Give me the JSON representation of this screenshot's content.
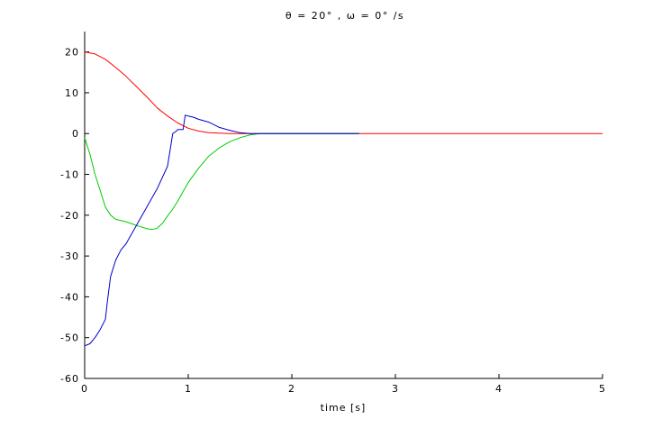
{
  "chart_data": {
    "type": "line",
    "title": "θ = 20°  , ω = 0° /s",
    "xlabel": "time [s]",
    "ylabel": "",
    "xlim": [
      0,
      5
    ],
    "ylim": [
      -60,
      25
    ],
    "x_ticks": [
      "0",
      "1",
      "2",
      "3",
      "4",
      "5"
    ],
    "y_ticks": [
      "20",
      "10",
      "0",
      "-10",
      "-20",
      "-30",
      "-40",
      "-50",
      "-60"
    ],
    "x_tick_values": [
      0,
      1,
      2,
      3,
      4,
      5
    ],
    "y_tick_values": [
      20,
      10,
      0,
      -10,
      -20,
      -30,
      -40,
      -50,
      -60
    ],
    "grid": false,
    "legend": "none",
    "series": [
      {
        "color": "#ff0000",
        "x": [
          0,
          0.1,
          0.2,
          0.3,
          0.4,
          0.5,
          0.6,
          0.7,
          0.8,
          0.9,
          1.0,
          1.1,
          1.2,
          1.3,
          1.4,
          1.5,
          1.6,
          1.8,
          2.0,
          3.0,
          4.0,
          5.0
        ],
        "y": [
          20,
          19.5,
          18.2,
          16.2,
          14.0,
          11.5,
          9.0,
          6.3,
          4.3,
          2.6,
          1.3,
          0.6,
          0.2,
          0.1,
          0,
          0,
          0,
          0,
          0,
          0,
          0,
          0
        ]
      },
      {
        "color": "#00cc00",
        "x": [
          0,
          0.05,
          0.1,
          0.15,
          0.2,
          0.25,
          0.3,
          0.35,
          0.4,
          0.5,
          0.6,
          0.65,
          0.7,
          0.75,
          0.8,
          0.85,
          0.9,
          0.95,
          1.0,
          1.1,
          1.2,
          1.3,
          1.4,
          1.5,
          1.6,
          1.7,
          2.0,
          2.65
        ],
        "y": [
          -1,
          -5,
          -10,
          -14,
          -18,
          -20,
          -21,
          -21.3,
          -21.6,
          -22.5,
          -23.3,
          -23.5,
          -23.2,
          -22,
          -20.2,
          -18.5,
          -16.5,
          -14.2,
          -12,
          -8.5,
          -5.5,
          -3.5,
          -2,
          -1,
          -0.3,
          0,
          0,
          0
        ]
      },
      {
        "color": "#0000cc",
        "x": [
          0,
          0.05,
          0.1,
          0.15,
          0.2,
          0.22,
          0.25,
          0.3,
          0.35,
          0.4,
          0.5,
          0.6,
          0.7,
          0.8,
          0.85,
          0.88,
          0.9,
          0.95,
          0.97,
          1.0,
          1.05,
          1.1,
          1.2,
          1.3,
          1.4,
          1.5,
          1.6,
          1.7,
          2.0,
          2.65
        ],
        "y": [
          -52,
          -51.5,
          -50,
          -48,
          -45.5,
          -41,
          -35,
          -31,
          -28.5,
          -27,
          -22.5,
          -18,
          -13.5,
          -8,
          0,
          0.5,
          1,
          1,
          4.5,
          4.3,
          4,
          3.5,
          2.8,
          1.5,
          0.8,
          0.2,
          0,
          0,
          0,
          0
        ]
      }
    ]
  }
}
